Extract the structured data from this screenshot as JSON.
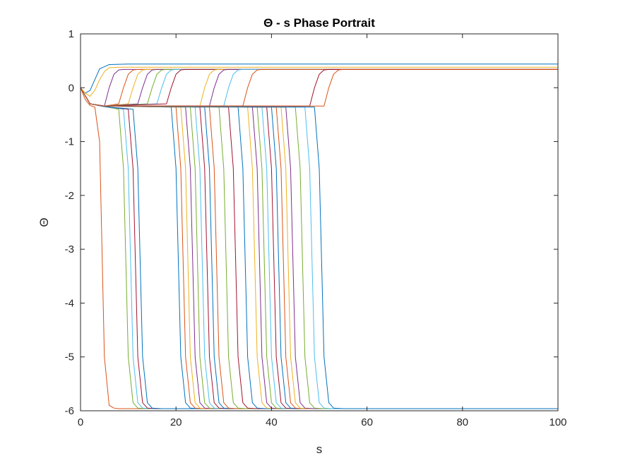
{
  "chart_data": {
    "type": "line",
    "title": "Θ - s Phase Portrait",
    "xlabel": "s",
    "ylabel": "Θ",
    "xlim": [
      0,
      100
    ],
    "ylim": [
      -6,
      1
    ],
    "xticks": [
      "0",
      "20",
      "40",
      "60",
      "80",
      "100"
    ],
    "yticks": [
      "1",
      "0",
      "-1",
      "-2",
      "-3",
      "-4",
      "-5",
      "-6"
    ],
    "grid": false,
    "legend": "none",
    "colors": [
      "#0072BD",
      "#D95319",
      "#EDB120",
      "#7E2F8E",
      "#77AC30",
      "#4DBEEE",
      "#A2142F"
    ],
    "series": [
      {
        "x": [
          0,
          0.5,
          1,
          2,
          3,
          4,
          6,
          10,
          30,
          100
        ],
        "y": [
          0,
          -0.06,
          -0.1,
          -0.05,
          0.15,
          0.35,
          0.43,
          0.44,
          0.44,
          0.44
        ]
      },
      {
        "x": [
          0,
          1,
          2,
          3,
          4,
          5,
          6,
          7,
          8,
          100
        ],
        "y": [
          0,
          -0.22,
          -0.33,
          -0.36,
          -1.0,
          -5.0,
          -5.9,
          -5.95,
          -5.96,
          -5.96
        ]
      },
      {
        "x": [
          0,
          1,
          2,
          3,
          4,
          5,
          6,
          8,
          12,
          100
        ],
        "y": [
          0,
          -0.1,
          -0.16,
          -0.05,
          0.15,
          0.3,
          0.37,
          0.38,
          0.38,
          0.38
        ]
      },
      {
        "x": [
          0,
          2,
          5,
          6,
          7,
          8,
          9,
          10,
          12,
          100
        ],
        "y": [
          0,
          -0.3,
          -0.34,
          0.0,
          0.25,
          0.33,
          0.34,
          0.34,
          0.34,
          0.34
        ]
      },
      {
        "x": [
          0,
          2,
          5,
          8,
          9,
          10,
          11,
          12,
          14,
          100
        ],
        "y": [
          0,
          -0.3,
          -0.35,
          -0.4,
          -1.5,
          -5.0,
          -5.85,
          -5.95,
          -5.96,
          -5.96
        ]
      },
      {
        "x": [
          0,
          2,
          5,
          9,
          10,
          11,
          12,
          13,
          15,
          100
        ],
        "y": [
          0,
          -0.3,
          -0.35,
          -0.4,
          -1.5,
          -5.0,
          -5.85,
          -5.95,
          -5.96,
          -5.96
        ]
      },
      {
        "x": [
          0,
          2,
          5,
          10,
          11,
          12,
          13,
          14,
          16,
          100
        ],
        "y": [
          0,
          -0.3,
          -0.35,
          -0.4,
          -1.5,
          -5.0,
          -5.85,
          -5.95,
          -5.96,
          -5.96
        ]
      },
      {
        "x": [
          0,
          2,
          5,
          11,
          12,
          13,
          14,
          15,
          17,
          100
        ],
        "y": [
          0,
          -0.3,
          -0.35,
          -0.4,
          -1.5,
          -5.0,
          -5.85,
          -5.95,
          -5.96,
          -5.96
        ]
      },
      {
        "x": [
          0,
          2,
          5,
          8,
          9,
          10,
          11,
          12,
          14,
          100
        ],
        "y": [
          0,
          -0.3,
          -0.34,
          -0.3,
          0.0,
          0.25,
          0.33,
          0.34,
          0.34,
          0.34
        ]
      },
      {
        "x": [
          0,
          2,
          5,
          10,
          11,
          12,
          13,
          14,
          16,
          100
        ],
        "y": [
          0,
          -0.3,
          -0.34,
          -0.3,
          0.0,
          0.25,
          0.33,
          0.34,
          0.34,
          0.34
        ]
      },
      {
        "x": [
          0,
          2,
          5,
          12,
          13,
          14,
          15,
          16,
          18,
          100
        ],
        "y": [
          0,
          -0.3,
          -0.34,
          -0.3,
          0.0,
          0.25,
          0.33,
          0.34,
          0.34,
          0.34
        ]
      },
      {
        "x": [
          0,
          2,
          5,
          14,
          15,
          16,
          17,
          18,
          20,
          100
        ],
        "y": [
          0,
          -0.3,
          -0.34,
          -0.3,
          0.0,
          0.25,
          0.33,
          0.34,
          0.34,
          0.34
        ]
      },
      {
        "x": [
          0,
          2,
          5,
          16,
          17,
          18,
          19,
          20,
          22,
          100
        ],
        "y": [
          0,
          -0.3,
          -0.34,
          -0.3,
          0.0,
          0.25,
          0.33,
          0.34,
          0.34,
          0.34
        ]
      },
      {
        "x": [
          0,
          2,
          5,
          18,
          19,
          20,
          21,
          22,
          24,
          100
        ],
        "y": [
          0,
          -0.3,
          -0.34,
          -0.3,
          0.0,
          0.25,
          0.33,
          0.34,
          0.34,
          0.34
        ]
      },
      {
        "x": [
          0,
          2,
          5,
          19,
          20,
          21,
          22,
          23,
          25,
          100
        ],
        "y": [
          0,
          -0.3,
          -0.34,
          -0.36,
          -1.5,
          -5.0,
          -5.85,
          -5.95,
          -5.96,
          -5.96
        ]
      },
      {
        "x": [
          0,
          2,
          5,
          20,
          21,
          22,
          23,
          24,
          26,
          100
        ],
        "y": [
          0,
          -0.3,
          -0.34,
          -0.36,
          -1.5,
          -5.0,
          -5.85,
          -5.95,
          -5.96,
          -5.96
        ]
      },
      {
        "x": [
          0,
          2,
          5,
          21,
          22,
          23,
          24,
          25,
          27,
          100
        ],
        "y": [
          0,
          -0.3,
          -0.34,
          -0.36,
          -1.5,
          -5.0,
          -5.85,
          -5.95,
          -5.96,
          -5.96
        ]
      },
      {
        "x": [
          0,
          2,
          5,
          22,
          23,
          24,
          25,
          26,
          28,
          100
        ],
        "y": [
          0,
          -0.3,
          -0.34,
          -0.36,
          -1.5,
          -5.0,
          -5.85,
          -5.95,
          -5.96,
          -5.96
        ]
      },
      {
        "x": [
          0,
          2,
          5,
          23,
          24,
          25,
          26,
          27,
          29,
          100
        ],
        "y": [
          0,
          -0.3,
          -0.34,
          -0.36,
          -1.5,
          -5.0,
          -5.85,
          -5.95,
          -5.96,
          -5.96
        ]
      },
      {
        "x": [
          0,
          2,
          5,
          24,
          25,
          26,
          27,
          28,
          30,
          100
        ],
        "y": [
          0,
          -0.3,
          -0.34,
          -0.36,
          -1.5,
          -5.0,
          -5.85,
          -5.95,
          -5.96,
          -5.96
        ]
      },
      {
        "x": [
          0,
          2,
          5,
          25,
          26,
          27,
          28,
          29,
          31,
          100
        ],
        "y": [
          0,
          -0.3,
          -0.34,
          -0.36,
          -1.5,
          -5.0,
          -5.85,
          -5.95,
          -5.96,
          -5.96
        ]
      },
      {
        "x": [
          0,
          2,
          5,
          26,
          27,
          28,
          29,
          30,
          32,
          100
        ],
        "y": [
          0,
          -0.3,
          -0.34,
          -0.36,
          -1.5,
          -5.0,
          -5.85,
          -5.95,
          -5.96,
          -5.96
        ]
      },
      {
        "x": [
          0,
          2,
          5,
          27,
          28,
          29,
          30,
          31,
          33,
          100
        ],
        "y": [
          0,
          -0.3,
          -0.34,
          -0.36,
          -1.5,
          -5.0,
          -5.85,
          -5.95,
          -5.96,
          -5.96
        ]
      },
      {
        "x": [
          0,
          2,
          5,
          25,
          26,
          27,
          28,
          29,
          31,
          100
        ],
        "y": [
          0,
          -0.3,
          -0.34,
          -0.34,
          0.0,
          0.25,
          0.33,
          0.34,
          0.34,
          0.34
        ]
      },
      {
        "x": [
          0,
          2,
          5,
          27,
          28,
          29,
          30,
          31,
          33,
          100
        ],
        "y": [
          0,
          -0.3,
          -0.34,
          -0.34,
          0.0,
          0.25,
          0.33,
          0.34,
          0.34,
          0.34
        ]
      },
      {
        "x": [
          0,
          2,
          5,
          29,
          30,
          31,
          32,
          33,
          35,
          100
        ],
        "y": [
          0,
          -0.3,
          -0.34,
          -0.36,
          -1.5,
          -5.0,
          -5.85,
          -5.95,
          -5.96,
          -5.96
        ]
      },
      {
        "x": [
          0,
          2,
          5,
          30,
          31,
          32,
          33,
          34,
          36,
          100
        ],
        "y": [
          0,
          -0.3,
          -0.34,
          -0.34,
          0.0,
          0.25,
          0.33,
          0.34,
          0.34,
          0.34
        ]
      },
      {
        "x": [
          0,
          2,
          5,
          31,
          32,
          33,
          34,
          35,
          37,
          100
        ],
        "y": [
          0,
          -0.3,
          -0.34,
          -0.36,
          -1.5,
          -5.0,
          -5.85,
          -5.95,
          -5.96,
          -5.96
        ]
      },
      {
        "x": [
          0,
          2,
          5,
          33,
          34,
          35,
          36,
          37,
          39,
          100
        ],
        "y": [
          0,
          -0.3,
          -0.34,
          -0.36,
          -1.5,
          -5.0,
          -5.85,
          -5.95,
          -5.96,
          -5.96
        ]
      },
      {
        "x": [
          0,
          2,
          5,
          34,
          35,
          36,
          37,
          38,
          40,
          100
        ],
        "y": [
          0,
          -0.3,
          -0.34,
          -0.34,
          0.0,
          0.25,
          0.33,
          0.34,
          0.34,
          0.34
        ]
      },
      {
        "x": [
          0,
          2,
          5,
          35,
          36,
          37,
          38,
          39,
          41,
          100
        ],
        "y": [
          0,
          -0.3,
          -0.34,
          -0.36,
          -1.5,
          -5.0,
          -5.85,
          -5.95,
          -5.96,
          -5.96
        ]
      },
      {
        "x": [
          0,
          2,
          5,
          36,
          37,
          38,
          39,
          40,
          42,
          100
        ],
        "y": [
          0,
          -0.3,
          -0.34,
          -0.36,
          -1.5,
          -5.0,
          -5.85,
          -5.95,
          -5.96,
          -5.96
        ]
      },
      {
        "x": [
          0,
          2,
          5,
          37,
          38,
          39,
          40,
          41,
          43,
          100
        ],
        "y": [
          0,
          -0.3,
          -0.34,
          -0.36,
          -1.5,
          -5.0,
          -5.85,
          -5.95,
          -5.96,
          -5.96
        ]
      },
      {
        "x": [
          0,
          2,
          5,
          38,
          39,
          40,
          41,
          42,
          44,
          100
        ],
        "y": [
          0,
          -0.3,
          -0.34,
          -0.36,
          -1.5,
          -5.0,
          -5.85,
          -5.95,
          -5.96,
          -5.96
        ]
      },
      {
        "x": [
          0,
          2,
          5,
          39,
          40,
          41,
          42,
          43,
          45,
          100
        ],
        "y": [
          0,
          -0.3,
          -0.34,
          -0.36,
          -1.5,
          -5.0,
          -5.85,
          -5.95,
          -5.96,
          -5.96
        ]
      },
      {
        "x": [
          0,
          2,
          5,
          40,
          41,
          42,
          43,
          44,
          46,
          100
        ],
        "y": [
          0,
          -0.3,
          -0.34,
          -0.36,
          -1.5,
          -5.0,
          -5.85,
          -5.95,
          -5.96,
          -5.96
        ]
      },
      {
        "x": [
          0,
          2,
          5,
          41,
          42,
          43,
          44,
          45,
          47,
          100
        ],
        "y": [
          0,
          -0.3,
          -0.34,
          -0.36,
          -1.5,
          -5.0,
          -5.85,
          -5.95,
          -5.96,
          -5.96
        ]
      },
      {
        "x": [
          0,
          2,
          5,
          42,
          43,
          44,
          45,
          46,
          48,
          100
        ],
        "y": [
          0,
          -0.3,
          -0.34,
          -0.36,
          -1.5,
          -5.0,
          -5.85,
          -5.95,
          -5.96,
          -5.96
        ]
      },
      {
        "x": [
          0,
          2,
          5,
          43,
          44,
          45,
          46,
          47,
          49,
          100
        ],
        "y": [
          0,
          -0.3,
          -0.34,
          -0.36,
          -1.5,
          -5.0,
          -5.85,
          -5.95,
          -5.96,
          -5.96
        ]
      },
      {
        "x": [
          0,
          2,
          5,
          45,
          46,
          47,
          48,
          49,
          51,
          100
        ],
        "y": [
          0,
          -0.3,
          -0.34,
          -0.36,
          -1.5,
          -5.0,
          -5.85,
          -5.95,
          -5.96,
          -5.96
        ]
      },
      {
        "x": [
          0,
          2,
          5,
          47,
          48,
          49,
          50,
          51,
          53,
          100
        ],
        "y": [
          0,
          -0.3,
          -0.34,
          -0.36,
          -1.5,
          -5.0,
          -5.85,
          -5.95,
          -5.96,
          -5.96
        ]
      },
      {
        "x": [
          0,
          2,
          5,
          48,
          49,
          50,
          51,
          52,
          54,
          100
        ],
        "y": [
          0,
          -0.3,
          -0.34,
          -0.34,
          0.0,
          0.25,
          0.33,
          0.34,
          0.34,
          0.34
        ]
      },
      {
        "x": [
          0,
          2,
          5,
          49,
          50,
          51,
          52,
          53,
          55,
          100
        ],
        "y": [
          0,
          -0.3,
          -0.34,
          -0.36,
          -1.5,
          -5.0,
          -5.85,
          -5.95,
          -5.96,
          -5.96
        ]
      },
      {
        "x": [
          0,
          2,
          5,
          51,
          52,
          53,
          54,
          55,
          57,
          100
        ],
        "y": [
          0,
          -0.3,
          -0.34,
          -0.34,
          0.0,
          0.25,
          0.33,
          0.34,
          0.34,
          0.34
        ]
      }
    ]
  }
}
